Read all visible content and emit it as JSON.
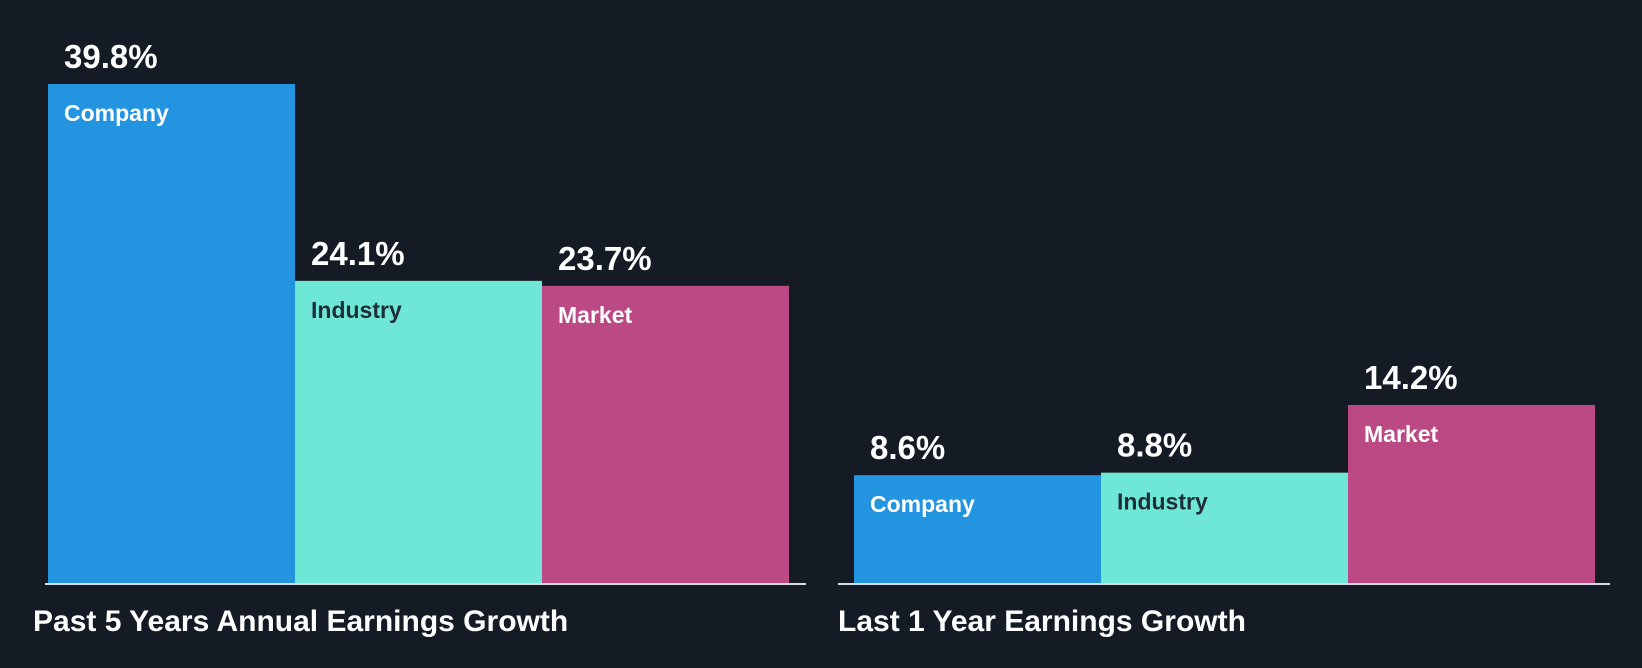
{
  "chart_data": [
    {
      "type": "bar",
      "title": "Past 5 Years Annual Earnings Growth",
      "categories": [
        "Company",
        "Industry",
        "Market"
      ],
      "values": [
        39.8,
        24.1,
        23.7
      ],
      "labels": [
        "39.8%",
        "24.1%",
        "23.7%"
      ],
      "unit": "%",
      "ylim": [
        0,
        39.8
      ],
      "grid": false,
      "legend": "none"
    },
    {
      "type": "bar",
      "title": "Last 1 Year Earnings Growth",
      "categories": [
        "Company",
        "Industry",
        "Market"
      ],
      "values": [
        8.6,
        8.8,
        14.2
      ],
      "labels": [
        "8.6%",
        "8.8%",
        "14.2%"
      ],
      "unit": "%",
      "ylim": [
        0,
        39.8
      ],
      "grid": false,
      "legend": "none"
    }
  ],
  "colors": {
    "background": "#151b24",
    "company": "#2394df",
    "industry": "#6fe7d6",
    "market": "#bb4984",
    "baseline": "#d9dde3",
    "text_light": "#ffffff",
    "text_dark": "#1f2d3a"
  }
}
